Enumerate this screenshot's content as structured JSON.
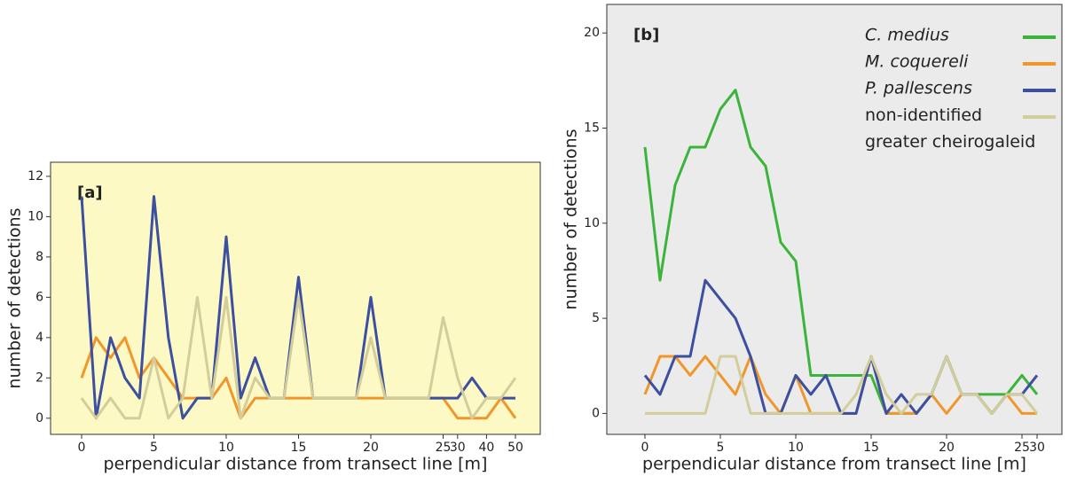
{
  "chart_data": [
    {
      "type": "line",
      "annotation": "[a]",
      "xlabel": "perpendicular distance from transect line [m]",
      "ylabel": "number of detections",
      "categories": [
        0,
        null,
        null,
        null,
        null,
        5,
        null,
        null,
        null,
        null,
        10,
        null,
        null,
        null,
        null,
        15,
        null,
        null,
        null,
        null,
        20,
        null,
        null,
        null,
        null,
        25,
        30,
        null,
        40,
        null,
        50
      ],
      "ylim": [
        -0.8,
        12.7
      ],
      "yticks": [
        0,
        2,
        4,
        6,
        8,
        10,
        12
      ],
      "background": "#fcf9c5",
      "series": [
        {
          "color": "#f0962a",
          "values": [
            2,
            4,
            3,
            4,
            2,
            3,
            2,
            1,
            1,
            1,
            2,
            0,
            1,
            1,
            1,
            1,
            1,
            1,
            1,
            1,
            1,
            1,
            1,
            1,
            1,
            1,
            0,
            0,
            0,
            1,
            0
          ]
        },
        {
          "color": "#3c4fa0",
          "values": [
            11,
            0,
            4,
            2,
            1,
            11,
            4,
            0,
            1,
            1,
            9,
            1,
            3,
            1,
            1,
            7,
            1,
            1,
            1,
            1,
            6,
            1,
            1,
            1,
            1,
            1,
            1,
            2,
            1,
            1,
            1
          ]
        },
        {
          "color": "#d3cd9b",
          "values": [
            1,
            0,
            1,
            0,
            0,
            3,
            0,
            1,
            6,
            1,
            6,
            0,
            2,
            1,
            1,
            6,
            1,
            1,
            1,
            1,
            4,
            1,
            1,
            1,
            1,
            5,
            2,
            0,
            1,
            1,
            2
          ]
        }
      ]
    },
    {
      "type": "line",
      "annotation": "[b]",
      "xlabel": "perpendicular distance from transect line [m]",
      "ylabel": "number of detections",
      "categories": [
        0,
        null,
        null,
        null,
        null,
        5,
        null,
        null,
        null,
        null,
        10,
        null,
        null,
        null,
        null,
        15,
        null,
        null,
        null,
        null,
        20,
        null,
        null,
        null,
        null,
        25,
        30
      ],
      "ylim": [
        -1.1,
        21.5
      ],
      "yticks": [
        0,
        5,
        10,
        15,
        20
      ],
      "background": "#ebebeb",
      "series": [
        {
          "name": "C. medius",
          "color": "#3cb43c",
          "values": [
            14,
            7,
            12,
            14,
            14,
            16,
            17,
            14,
            13,
            9,
            8,
            2,
            2,
            2,
            2,
            2,
            0,
            0,
            0,
            1,
            3,
            1,
            1,
            1,
            1,
            2,
            1
          ]
        },
        {
          "name": "M. coquereli",
          "color": "#f0962a",
          "values": [
            1,
            3,
            3,
            2,
            3,
            2,
            1,
            3,
            1,
            0,
            2,
            0,
            0,
            0,
            0,
            3,
            0,
            0,
            0,
            1,
            0,
            1,
            1,
            0,
            1,
            0,
            0
          ]
        },
        {
          "name": "P. pallescens",
          "color": "#3c4fa0",
          "values": [
            2,
            1,
            3,
            3,
            7,
            6,
            5,
            3,
            0,
            0,
            2,
            1,
            2,
            0,
            0,
            3,
            0,
            1,
            0,
            1,
            3,
            1,
            1,
            0,
            1,
            1,
            2
          ]
        },
        {
          "name": "non-identified greater cheirogaleid",
          "color": "#d3cd9b",
          "values": [
            0,
            0,
            0,
            0,
            0,
            3,
            3,
            0,
            0,
            0,
            0,
            0,
            0,
            0,
            1,
            3,
            1,
            0,
            1,
            1,
            3,
            1,
            1,
            0,
            1,
            1,
            0
          ]
        }
      ]
    }
  ]
}
